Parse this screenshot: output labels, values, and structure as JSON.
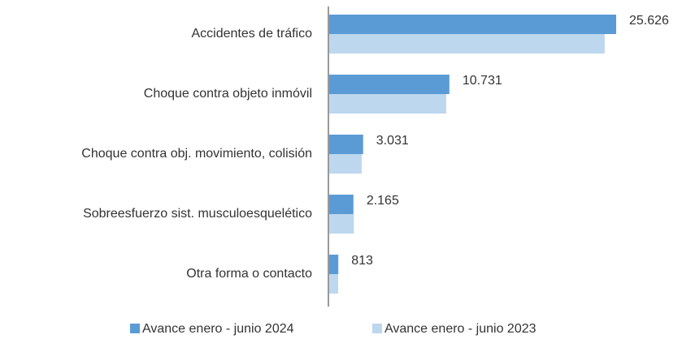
{
  "chart_data": {
    "type": "bar",
    "orientation": "horizontal",
    "categories": [
      "Accidentes de tráfico",
      "Choque contra objeto inmóvil",
      "Choque contra obj. movimiento, colisión",
      "Sobreesfuerzo sist. musculoesquelético",
      "Otra forma o contacto"
    ],
    "series": [
      {
        "name": "Avance enero - junio 2024",
        "color": "#5b9bd5",
        "values": [
          25626,
          10731,
          3031,
          2165,
          813
        ],
        "value_labels": [
          "25.626",
          "10.731",
          "3.031",
          "2.165",
          "813"
        ]
      },
      {
        "name": "Avance enero - junio 2023",
        "color": "#bdd7ee",
        "values": [
          24600,
          10450,
          2900,
          2200,
          800
        ]
      }
    ]
  }
}
